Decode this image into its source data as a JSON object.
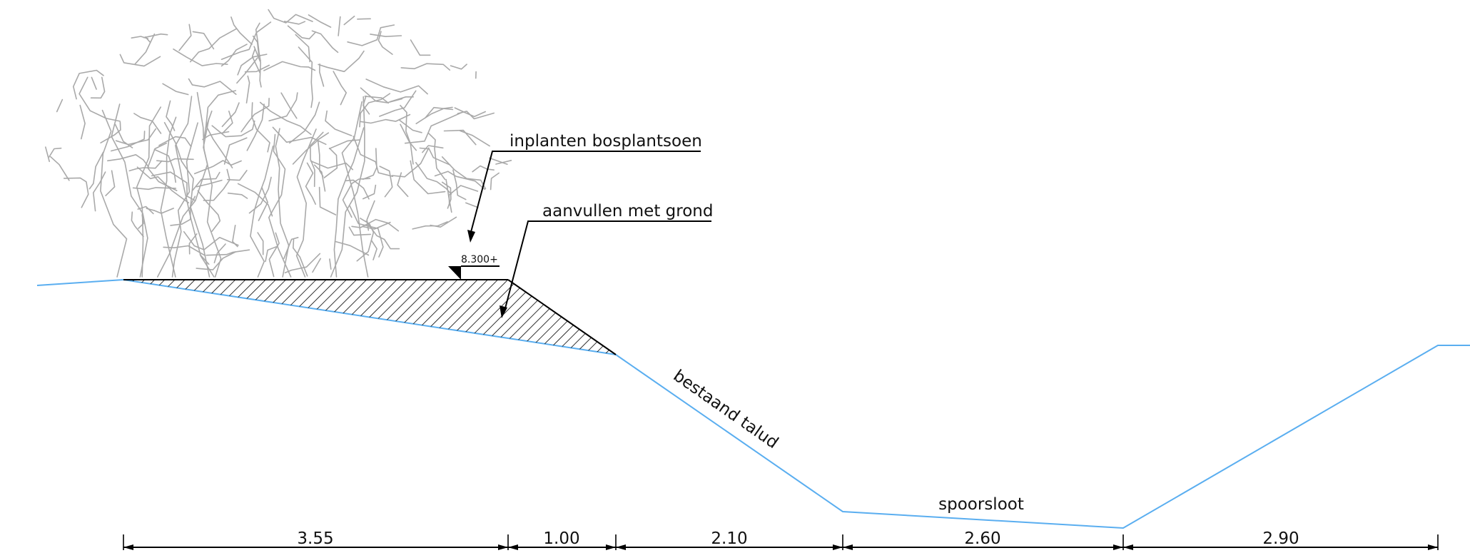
{
  "labels": {
    "plant": "inplanten bosplantsoen",
    "fill": "aanvullen met grond",
    "level": "8.300+",
    "slope": "bestaand talud",
    "ditch": "spoorsloot"
  },
  "dimensions": [
    "3.55",
    "1.00",
    "2.10",
    "2.60",
    "2.90"
  ],
  "colors": {
    "ground_line": "#5aaef0",
    "ink": "#000000",
    "vegetation": "#a9a9a9"
  }
}
